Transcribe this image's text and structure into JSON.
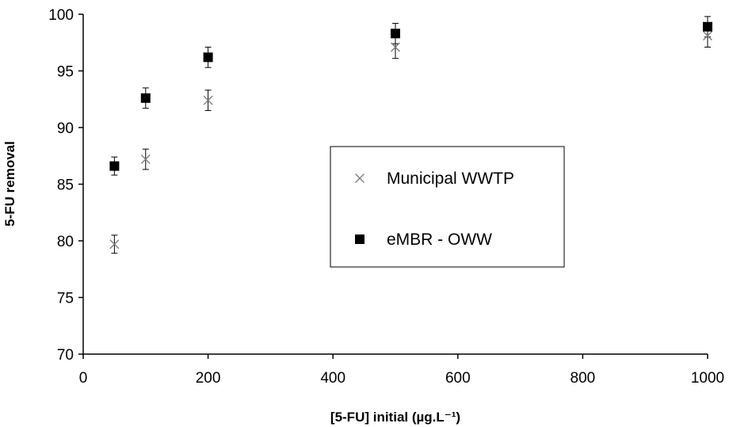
{
  "chart_data": {
    "type": "scatter",
    "xlabel": "[5-FU] initial (µg.L⁻¹)",
    "ylabel": "5-FU removal",
    "xlim": [
      0,
      1000
    ],
    "ylim": [
      70,
      100
    ],
    "xticks": [
      "0",
      "200",
      "400",
      "600",
      "800",
      "1000"
    ],
    "yticks": [
      "70",
      "75",
      "80",
      "85",
      "90",
      "95",
      "100"
    ],
    "grid": false,
    "legend_position": "center",
    "series": [
      {
        "name": "Municipal WWTP",
        "marker": "x",
        "color": "#808080",
        "x": [
          50,
          100,
          200,
          500,
          1000
        ],
        "y": [
          79.7,
          87.2,
          92.4,
          97.1,
          98.1
        ],
        "err": [
          0.8,
          0.9,
          0.9,
          1.0,
          1.0
        ]
      },
      {
        "name": "eMBR - OWW",
        "marker": "square",
        "color": "#000000",
        "x": [
          50,
          100,
          200,
          500,
          1000
        ],
        "y": [
          86.6,
          92.6,
          96.2,
          98.3,
          98.9
        ],
        "err": [
          0.8,
          0.9,
          0.9,
          0.9,
          0.9
        ]
      }
    ]
  }
}
